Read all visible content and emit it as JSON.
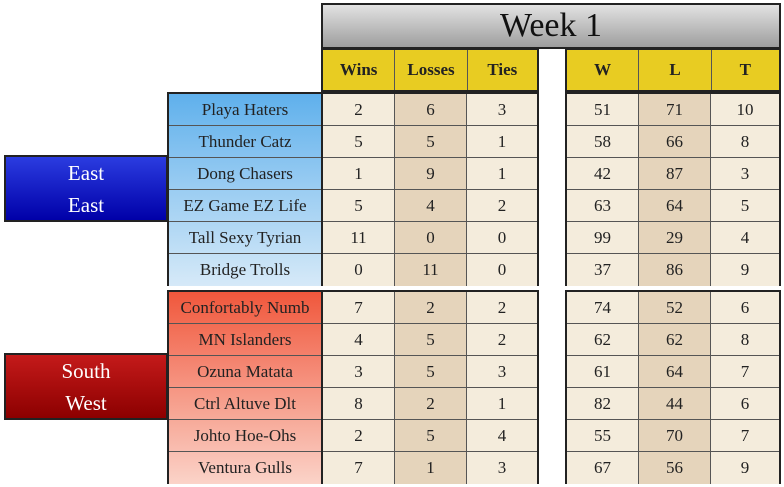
{
  "title": "Week 1",
  "headers": {
    "record": [
      "Wins",
      "Losses",
      "Ties"
    ],
    "matchups": [
      "W",
      "L",
      "T"
    ]
  },
  "divisions": [
    {
      "label_lines": [
        "East",
        "East"
      ],
      "teams": [
        {
          "name": "Playa Haters",
          "wins": "2",
          "losses": "6",
          "ties": "3",
          "w": "51",
          "l": "71",
          "t": "10"
        },
        {
          "name": "Thunder Catz",
          "wins": "5",
          "losses": "5",
          "ties": "1",
          "w": "58",
          "l": "66",
          "t": "8"
        },
        {
          "name": "Dong Chasers",
          "wins": "1",
          "losses": "9",
          "ties": "1",
          "w": "42",
          "l": "87",
          "t": "3"
        },
        {
          "name": "EZ Game EZ Life",
          "wins": "5",
          "losses": "4",
          "ties": "2",
          "w": "63",
          "l": "64",
          "t": "5"
        },
        {
          "name": "Tall Sexy Tyrian",
          "wins": "11",
          "losses": "0",
          "ties": "0",
          "w": "99",
          "l": "29",
          "t": "4"
        },
        {
          "name": "Bridge Trolls",
          "wins": "0",
          "losses": "11",
          "ties": "0",
          "w": "37",
          "l": "86",
          "t": "9"
        }
      ]
    },
    {
      "label_lines": [
        "South",
        "West"
      ],
      "teams": [
        {
          "name": "Confortably Numb",
          "wins": "7",
          "losses": "2",
          "ties": "2",
          "w": "74",
          "l": "52",
          "t": "6"
        },
        {
          "name": "MN Islanders",
          "wins": "4",
          "losses": "5",
          "ties": "2",
          "w": "62",
          "l": "62",
          "t": "8"
        },
        {
          "name": "Ozuna Matata",
          "wins": "3",
          "losses": "5",
          "ties": "3",
          "w": "61",
          "l": "64",
          "t": "7"
        },
        {
          "name": "Ctrl Altuve Dlt",
          "wins": "8",
          "losses": "2",
          "ties": "1",
          "w": "82",
          "l": "44",
          "t": "6"
        },
        {
          "name": "Johto Hoe-Ohs",
          "wins": "2",
          "losses": "5",
          "ties": "4",
          "w": "55",
          "l": "70",
          "t": "7"
        },
        {
          "name": "Ventura Gulls",
          "wins": "7",
          "losses": "1",
          "ties": "3",
          "w": "67",
          "l": "56",
          "t": "9"
        }
      ]
    }
  ],
  "colors": {
    "header": "#e8cc22",
    "east_label": "#0a16c8",
    "west_label": "#b00808",
    "east_team_top": "#5fb0ec",
    "east_team_bottom": "#d6e9f8",
    "west_team_top": "#f0573c",
    "west_team_bottom": "#fbd3c8"
  }
}
